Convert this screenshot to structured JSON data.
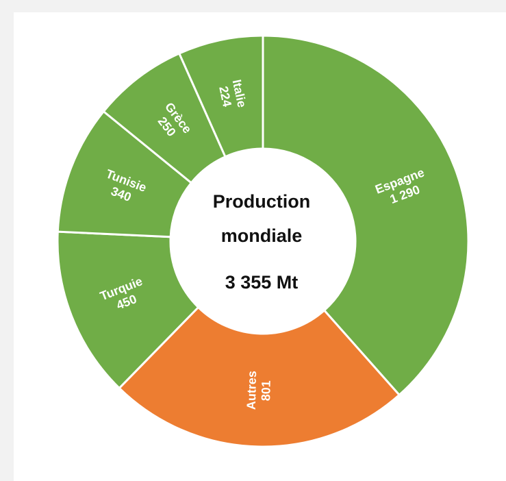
{
  "chart_data": {
    "type": "donut",
    "categories": [
      "Espagne",
      "Autres",
      "Turquie",
      "Tunisie",
      "Grèce",
      "Italie"
    ],
    "values": [
      1290,
      801,
      450,
      340,
      250,
      224
    ],
    "value_labels": [
      "1 290",
      "801",
      "450",
      "340",
      "250",
      "224"
    ],
    "colors": [
      "#70ad47",
      "#ed7d31",
      "#70ad47",
      "#70ad47",
      "#70ad47",
      "#70ad47"
    ],
    "center_lines": [
      "Production",
      "mondiale",
      "3 355 Mt"
    ]
  }
}
